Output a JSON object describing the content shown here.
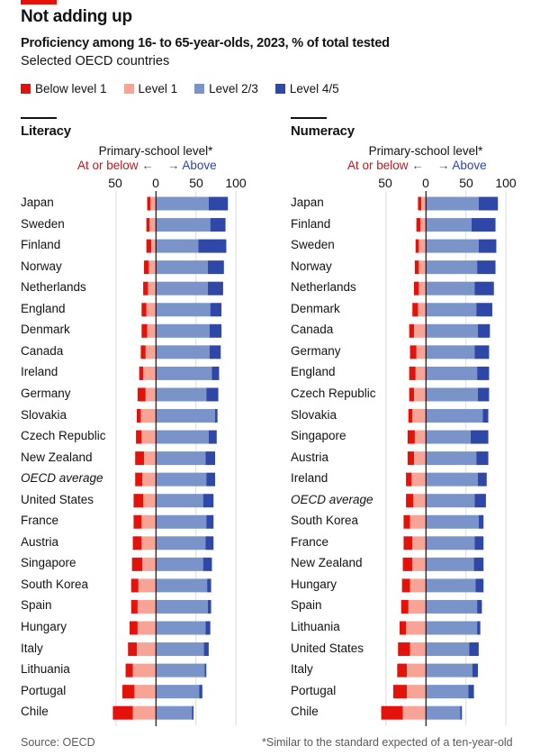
{
  "header": {
    "title": "Not adding up",
    "subtitle": "Proficiency among 16- to 65-year-olds, 2023, % of total tested",
    "subtitle2": "Selected OECD countries"
  },
  "legend": [
    {
      "label": "Below level 1",
      "color": "#e3120b"
    },
    {
      "label": "Level 1",
      "color": "#f7a497"
    },
    {
      "label": "Level 2/3",
      "color": "#7a93c9"
    },
    {
      "label": "Level 4/5",
      "color": "#2f47a6"
    }
  ],
  "axis_header": {
    "title": "Primary-school level*",
    "below": "At or below",
    "below_arrow": "←",
    "above_arrow": "→",
    "above": "Above"
  },
  "footer": {
    "source": "Source: OECD",
    "note": "*Similar to the standard expected of a ten-year-old"
  },
  "chart_data": [
    {
      "type": "bar",
      "title": "Literacy",
      "stacked": "diverging",
      "xlabel": "Primary-school level*",
      "xlim": [
        -50,
        100
      ],
      "ticks": [
        -50,
        0,
        50,
        100
      ],
      "tick_labels": [
        "50",
        "0",
        "50",
        "100"
      ],
      "grid": true,
      "categories": [
        "Japan",
        "Sweden",
        "Finland",
        "Norway",
        "Netherlands",
        "England",
        "Denmark",
        "Canada",
        "Ireland",
        "Germany",
        "Slovakia",
        "Czech Republic",
        "New Zealand",
        "OECD average",
        "United States",
        "France",
        "Austria",
        "Singapore",
        "South Korea",
        "Spain",
        "Hungary",
        "Italy",
        "Lithuania",
        "Portugal",
        "Chile"
      ],
      "series": [
        {
          "name": "Below level 1",
          "side": "left",
          "values": [
            4,
            4,
            6,
            6,
            6,
            6,
            7,
            6,
            5,
            10,
            5,
            7,
            11,
            9,
            12,
            10,
            11,
            13,
            9,
            8,
            10,
            11,
            9,
            15,
            25
          ]
        },
        {
          "name": "Level 1",
          "side": "left",
          "values": [
            7,
            8,
            6,
            9,
            10,
            12,
            11,
            13,
            16,
            13,
            19,
            18,
            15,
            17,
            16,
            18,
            18,
            17,
            22,
            23,
            23,
            24,
            29,
            27,
            29
          ]
        },
        {
          "name": "Level 2/3",
          "side": "right",
          "values": [
            66,
            68,
            53,
            65,
            65,
            68,
            67,
            67,
            70,
            63,
            74,
            66,
            62,
            63,
            59,
            63,
            62,
            59,
            64,
            65,
            62,
            60,
            61,
            54,
            45
          ]
        },
        {
          "name": "Level 4/5",
          "side": "right",
          "values": [
            24,
            19,
            35,
            20,
            19,
            14,
            15,
            14,
            9,
            15,
            3,
            10,
            12,
            11,
            13,
            9,
            10,
            11,
            5,
            4,
            6,
            6,
            2,
            4,
            2
          ]
        }
      ]
    },
    {
      "type": "bar",
      "title": "Numeracy",
      "stacked": "diverging",
      "xlabel": "Primary-school level*",
      "xlim": [
        -50,
        100
      ],
      "ticks": [
        -50,
        0,
        50,
        100
      ],
      "tick_labels": [
        "50",
        "0",
        "50",
        "100"
      ],
      "grid": true,
      "categories": [
        "Japan",
        "Finland",
        "Sweden",
        "Norway",
        "Netherlands",
        "Denmark",
        "Canada",
        "Germany",
        "England",
        "Czech Republic",
        "Slovakia",
        "Singapore",
        "Austria",
        "Ireland",
        "OECD average",
        "South Korea",
        "France",
        "New Zealand",
        "Hungary",
        "Spain",
        "Lithuania",
        "United States",
        "Italy",
        "Portugal",
        "Chile"
      ],
      "series": [
        {
          "name": "Below level 1",
          "side": "left",
          "values": [
            4,
            5,
            4,
            5,
            6,
            7,
            6,
            8,
            8,
            6,
            5,
            9,
            8,
            7,
            9,
            8,
            11,
            12,
            10,
            9,
            8,
            15,
            12,
            17,
            27
          ]
        },
        {
          "name": "Level 1",
          "side": "left",
          "values": [
            6,
            7,
            9,
            9,
            9,
            10,
            15,
            12,
            13,
            15,
            17,
            14,
            15,
            18,
            16,
            20,
            17,
            17,
            20,
            22,
            25,
            20,
            24,
            24,
            29
          ]
        },
        {
          "name": "Level 2/3",
          "side": "right",
          "values": [
            66,
            57,
            66,
            64,
            61,
            63,
            65,
            61,
            64,
            65,
            71,
            56,
            63,
            65,
            61,
            66,
            61,
            60,
            62,
            64,
            64,
            54,
            58,
            53,
            43
          ]
        },
        {
          "name": "Level 4/5",
          "side": "right",
          "values": [
            24,
            30,
            22,
            23,
            24,
            20,
            15,
            18,
            15,
            14,
            7,
            22,
            15,
            11,
            14,
            6,
            11,
            12,
            10,
            6,
            4,
            12,
            7,
            7,
            2
          ]
        }
      ]
    }
  ]
}
